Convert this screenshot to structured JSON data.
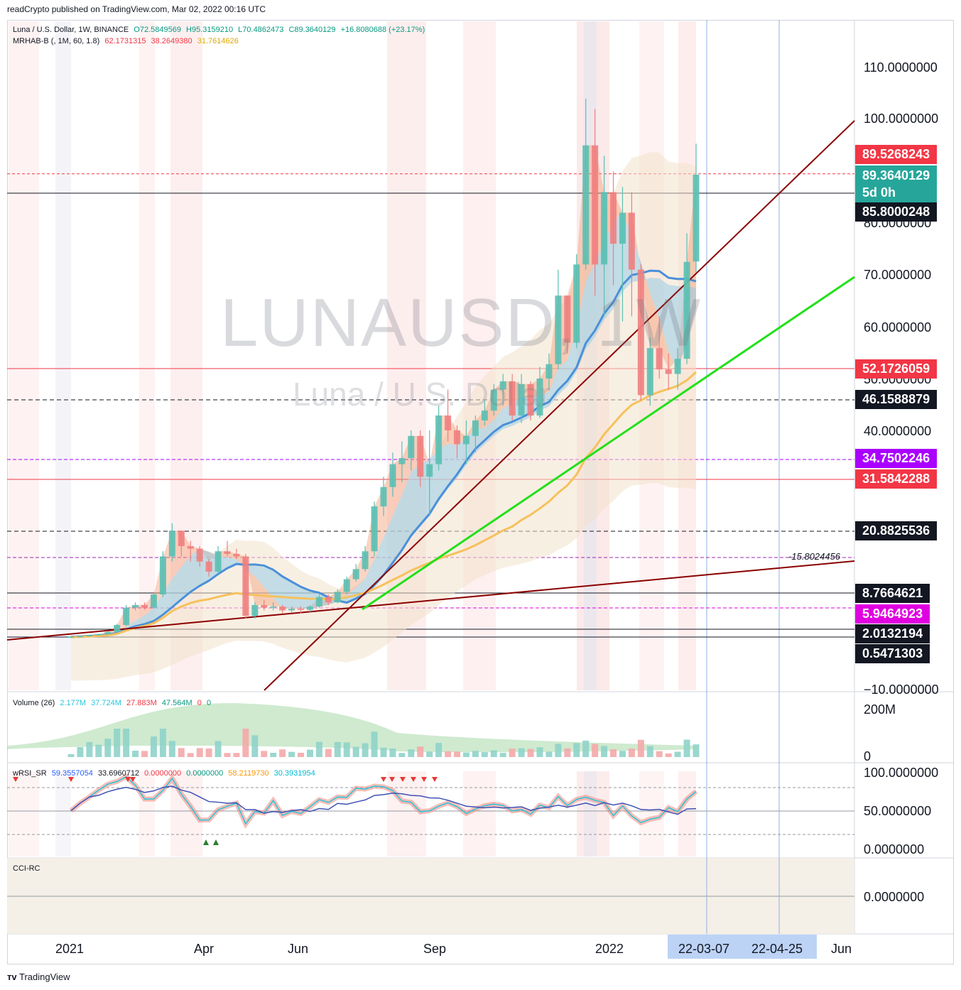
{
  "header": {
    "publisher_line": "readCrypto published on TradingView.com, Mar 02, 2022 00:16 UTC"
  },
  "watermark": {
    "symbol": "LUNAUSD, 1W",
    "name": "Luna / U.S. Dollar"
  },
  "legend": {
    "main": {
      "title": "Luna / U.S. Dollar, 1W, BINANCE",
      "open": "O72.5849569",
      "high": "H95.3159210",
      "low": "L70.4862473",
      "close": "C89.3640129",
      "change": "+16.8080688 (+23.17%)"
    },
    "mrhab": {
      "title": "MRHAB-B (, 1M, 60, 1.8)",
      "v1": "62.1731315",
      "v2": "38.2649380",
      "v3": "31.7614626"
    },
    "volume": {
      "title": "Volume (26)",
      "v1": "2.177M",
      "v2": "37.724M",
      "v3": "27.883M",
      "v4": "47.564M",
      "v5": "0",
      "v6": "0"
    },
    "wrsi": {
      "title": "wRSI_SR",
      "v1": "59.3557054",
      "v2": "33.6960712",
      "v3": "0.0000000",
      "v4": "0.0000000",
      "v5": "58.2119730",
      "v6": "30.3931954"
    },
    "cci": {
      "title": "CCI-RC"
    }
  },
  "price_axis": [
    "110.0000000",
    "100.0000000",
    "80.0000000",
    "70.0000000",
    "60.0000000",
    "50.0000000",
    "40.0000000",
    "−10.0000000"
  ],
  "price_badges": [
    {
      "label": "89.5268243",
      "color": "#f23645"
    },
    {
      "label": "89.3640129",
      "sub": "5d 0h",
      "color": "#26a69a"
    },
    {
      "label": "85.8000248",
      "color": "#131722"
    },
    {
      "label": "52.1726059",
      "color": "#f23645"
    },
    {
      "label": "46.1588879",
      "color": "#131722"
    },
    {
      "label": "34.7502246",
      "color": "#aa00ff"
    },
    {
      "label": "31.5842288",
      "color": "#f23645"
    },
    {
      "label": "20.8825536",
      "color": "#131722"
    },
    {
      "label": "8.7664621",
      "color": "#131722"
    },
    {
      "label": "5.9464923",
      "color": "#e000e0"
    },
    {
      "label": "2.0132194",
      "color": "#131722"
    },
    {
      "label": "0.5471303",
      "color": "#131722"
    }
  ],
  "trend_label": "15.8024456",
  "volume_axis": [
    "200M",
    "0"
  ],
  "rsi_axis": [
    "100.0000000",
    "50.0000000",
    "0.0000000"
  ],
  "cci_axis": [
    "0.0000000"
  ],
  "time_axis": [
    "2021",
    "Apr",
    "Jun",
    "Sep",
    "2022",
    "Jun"
  ],
  "time_badges": [
    "22-03-07",
    "22-04-25"
  ],
  "footer": {
    "brand": "TradingView"
  },
  "chart_data": {
    "type": "candlestick",
    "symbol": "LUNAUSD",
    "interval": "1W",
    "exchange": "BINANCE",
    "y_axis_ticks": [
      110,
      100,
      80,
      70,
      60,
      50,
      40,
      -10
    ],
    "candles": [
      {
        "o": 0.6,
        "h": 0.7,
        "l": 0.5,
        "c": 0.6
      },
      {
        "o": 0.6,
        "h": 0.8,
        "l": 0.5,
        "c": 0.7
      },
      {
        "o": 0.7,
        "h": 1.0,
        "l": 0.6,
        "c": 0.9
      },
      {
        "o": 0.9,
        "h": 1.2,
        "l": 0.8,
        "c": 1.1
      },
      {
        "o": 1.1,
        "h": 1.6,
        "l": 1.0,
        "c": 1.5
      },
      {
        "o": 1.5,
        "h": 3.0,
        "l": 1.4,
        "c": 2.8
      },
      {
        "o": 2.8,
        "h": 6.5,
        "l": 2.6,
        "c": 6.0
      },
      {
        "o": 6.0,
        "h": 7.0,
        "l": 5.5,
        "c": 6.5
      },
      {
        "o": 6.5,
        "h": 7.0,
        "l": 5.6,
        "c": 6.0
      },
      {
        "o": 6.0,
        "h": 9.0,
        "l": 5.8,
        "c": 8.5
      },
      {
        "o": 8.5,
        "h": 17.0,
        "l": 8.0,
        "c": 16.0
      },
      {
        "o": 16.0,
        "h": 22.5,
        "l": 15.0,
        "c": 21.0
      },
      {
        "o": 21.0,
        "h": 21.0,
        "l": 16.0,
        "c": 18.0
      },
      {
        "o": 18.0,
        "h": 19.0,
        "l": 15.0,
        "c": 17.5
      },
      {
        "o": 17.5,
        "h": 18.0,
        "l": 14.0,
        "c": 15.0
      },
      {
        "o": 15.0,
        "h": 15.5,
        "l": 12.0,
        "c": 13.0
      },
      {
        "o": 13.0,
        "h": 18.0,
        "l": 12.5,
        "c": 17.0
      },
      {
        "o": 17.0,
        "h": 19.0,
        "l": 16.0,
        "c": 16.5
      },
      {
        "o": 16.5,
        "h": 17.5,
        "l": 15.5,
        "c": 16.0
      },
      {
        "o": 16.0,
        "h": 16.5,
        "l": 4.0,
        "c": 4.5
      },
      {
        "o": 4.5,
        "h": 7.0,
        "l": 4.0,
        "c": 6.5
      },
      {
        "o": 6.5,
        "h": 7.5,
        "l": 5.5,
        "c": 6.0
      },
      {
        "o": 6.0,
        "h": 7.0,
        "l": 5.5,
        "c": 6.2
      },
      {
        "o": 6.2,
        "h": 6.5,
        "l": 5.0,
        "c": 5.5
      },
      {
        "o": 5.5,
        "h": 6.2,
        "l": 5.0,
        "c": 5.8
      },
      {
        "o": 5.8,
        "h": 6.3,
        "l": 5.0,
        "c": 5.6
      },
      {
        "o": 5.6,
        "h": 6.5,
        "l": 5.2,
        "c": 6.2
      },
      {
        "o": 6.2,
        "h": 8.5,
        "l": 6.0,
        "c": 8.0
      },
      {
        "o": 8.0,
        "h": 8.5,
        "l": 6.5,
        "c": 7.0
      },
      {
        "o": 7.0,
        "h": 9.5,
        "l": 6.8,
        "c": 9.0
      },
      {
        "o": 9.0,
        "h": 12.0,
        "l": 8.5,
        "c": 11.5
      },
      {
        "o": 11.5,
        "h": 14.5,
        "l": 11.0,
        "c": 13.5
      },
      {
        "o": 13.5,
        "h": 18.0,
        "l": 13.0,
        "c": 17.0
      },
      {
        "o": 17.0,
        "h": 27.0,
        "l": 16.0,
        "c": 26.0
      },
      {
        "o": 26.0,
        "h": 32.0,
        "l": 24.0,
        "c": 30.0
      },
      {
        "o": 30.0,
        "h": 36.0,
        "l": 28.0,
        "c": 34.0
      },
      {
        "o": 34.0,
        "h": 38.0,
        "l": 31.0,
        "c": 35.0
      },
      {
        "o": 35.0,
        "h": 40.0,
        "l": 33.0,
        "c": 39.0
      },
      {
        "o": 39.0,
        "h": 40.0,
        "l": 30.0,
        "c": 32.0
      },
      {
        "o": 32.0,
        "h": 40.0,
        "l": 24.0,
        "c": 34.0
      },
      {
        "o": 34.0,
        "h": 45.0,
        "l": 33.0,
        "c": 43.0
      },
      {
        "o": 43.0,
        "h": 48.0,
        "l": 38.0,
        "c": 40.0
      },
      {
        "o": 40.0,
        "h": 41.0,
        "l": 35.0,
        "c": 37.5
      },
      {
        "o": 37.5,
        "h": 42.0,
        "l": 34.0,
        "c": 39.0
      },
      {
        "o": 39.0,
        "h": 43.0,
        "l": 36.0,
        "c": 42.0
      },
      {
        "o": 42.0,
        "h": 46.0,
        "l": 41.0,
        "c": 44.0
      },
      {
        "o": 44.0,
        "h": 49.0,
        "l": 43.0,
        "c": 48.0
      },
      {
        "o": 48.0,
        "h": 51.0,
        "l": 45.0,
        "c": 49.5
      },
      {
        "o": 49.5,
        "h": 51.0,
        "l": 42.0,
        "c": 43.0
      },
      {
        "o": 43.0,
        "h": 51.0,
        "l": 41.5,
        "c": 49.0
      },
      {
        "o": 49.0,
        "h": 49.5,
        "l": 42.0,
        "c": 43.0
      },
      {
        "o": 43.0,
        "h": 52.5,
        "l": 42.5,
        "c": 50.0
      },
      {
        "o": 50.0,
        "h": 55.0,
        "l": 48.0,
        "c": 53.0
      },
      {
        "o": 53.0,
        "h": 71.0,
        "l": 52.0,
        "c": 66.0
      },
      {
        "o": 66.0,
        "h": 66.0,
        "l": 55.0,
        "c": 57.0
      },
      {
        "o": 57.0,
        "h": 74.0,
        "l": 56.0,
        "c": 72.0
      },
      {
        "o": 72.0,
        "h": 104.0,
        "l": 71.0,
        "c": 95.0
      },
      {
        "o": 95.0,
        "h": 102.0,
        "l": 66.0,
        "c": 72.0
      },
      {
        "o": 72.0,
        "h": 93.0,
        "l": 62.0,
        "c": 86.0
      },
      {
        "o": 86.0,
        "h": 90.0,
        "l": 68.0,
        "c": 76.0
      },
      {
        "o": 76.0,
        "h": 87.0,
        "l": 61.0,
        "c": 82.0
      },
      {
        "o": 82.0,
        "h": 86.0,
        "l": 62.0,
        "c": 71.0
      },
      {
        "o": 71.0,
        "h": 72.0,
        "l": 46.0,
        "c": 47.0
      },
      {
        "o": 47.0,
        "h": 58.0,
        "l": 45.0,
        "c": 56.0
      },
      {
        "o": 56.0,
        "h": 62.0,
        "l": 50.0,
        "c": 52.0
      },
      {
        "o": 52.0,
        "h": 55.0,
        "l": 48.0,
        "c": 51.0
      },
      {
        "o": 51.0,
        "h": 56.0,
        "l": 48.0,
        "c": 54.0
      },
      {
        "o": 54.0,
        "h": 78.0,
        "l": 53.0,
        "c": 72.5
      },
      {
        "o": 72.58,
        "h": 95.32,
        "l": 70.49,
        "c": 89.36
      }
    ],
    "horizontal_levels": [
      89.5268243,
      85.8000248,
      52.1726059,
      46.1588879,
      34.7502246,
      31.5842288,
      20.8825536,
      15.8024456,
      8.7664621,
      5.9464923,
      2.0132194,
      0.5471303
    ]
  }
}
